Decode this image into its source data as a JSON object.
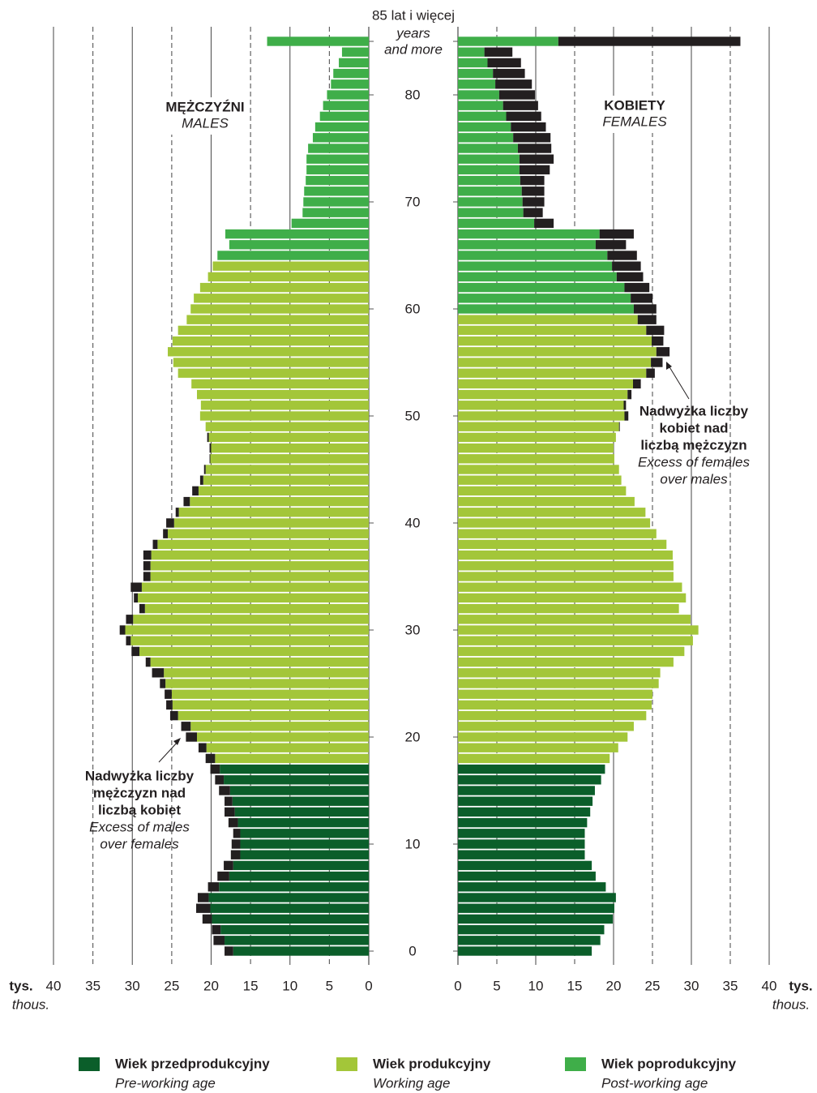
{
  "chart_data": {
    "type": "population_pyramid",
    "categories": [
      "0",
      null,
      null,
      null,
      null,
      null,
      null,
      null,
      null,
      null,
      "10",
      null,
      null,
      null,
      null,
      null,
      null,
      null,
      null,
      null,
      "20",
      null,
      null,
      null,
      null,
      null,
      null,
      null,
      null,
      null,
      "30",
      null,
      null,
      null,
      null,
      null,
      null,
      null,
      null,
      null,
      "40",
      null,
      null,
      null,
      null,
      null,
      null,
      null,
      null,
      null,
      "50",
      null,
      null,
      null,
      null,
      null,
      null,
      null,
      null,
      null,
      "60",
      null,
      null,
      null,
      null,
      null,
      null,
      null,
      null,
      null,
      "70",
      null,
      null,
      null,
      null,
      null,
      null,
      null,
      null,
      null,
      "80",
      null,
      null,
      null,
      null,
      "85 lat i więcej"
    ],
    "top_category_note": [
      "years",
      "and more"
    ],
    "males": [
      18.3,
      19.7,
      19.9,
      21.1,
      21.9,
      21.7,
      20.4,
      19.2,
      18.4,
      17.5,
      17.4,
      17.2,
      17.8,
      18.3,
      18.3,
      19.0,
      19.5,
      20.1,
      20.7,
      21.6,
      23.2,
      23.8,
      25.2,
      25.7,
      25.9,
      26.5,
      27.5,
      28.3,
      30.1,
      30.8,
      31.6,
      30.8,
      29.1,
      29.8,
      30.2,
      28.6,
      28.6,
      28.6,
      27.4,
      26.1,
      25.7,
      24.5,
      23.5,
      22.4,
      21.4,
      20.9,
      20.2,
      20.2,
      20.5,
      20.7,
      21.4,
      21.3,
      21.8,
      22.5,
      24.2,
      24.8,
      25.5,
      24.9,
      24.2,
      23.1,
      22.6,
      22.2,
      21.4,
      20.4,
      19.8,
      19.2,
      17.7,
      18.2,
      9.8,
      8.4,
      8.3,
      8.2,
      8.0,
      7.9,
      7.9,
      7.7,
      7.1,
      6.8,
      6.2,
      5.8,
      5.3,
      4.8,
      4.5,
      3.8,
      3.4,
      12.9
    ],
    "females": [
      17.2,
      18.3,
      18.8,
      19.9,
      20.1,
      20.3,
      19.0,
      17.7,
      17.2,
      16.3,
      16.3,
      16.3,
      16.6,
      17.0,
      17.3,
      17.6,
      18.4,
      18.9,
      19.5,
      20.6,
      21.8,
      22.6,
      24.2,
      24.9,
      25.0,
      25.8,
      26.0,
      27.7,
      29.1,
      30.2,
      30.9,
      29.9,
      28.4,
      29.3,
      28.8,
      27.7,
      27.7,
      27.6,
      26.8,
      25.5,
      24.7,
      24.1,
      22.7,
      21.6,
      21.0,
      20.7,
      20.1,
      20.0,
      20.3,
      20.8,
      21.9,
      21.6,
      22.3,
      23.5,
      25.3,
      26.3,
      27.2,
      26.4,
      26.5,
      25.5,
      25.5,
      25.0,
      24.6,
      23.8,
      23.5,
      23.0,
      21.6,
      22.6,
      12.3,
      10.9,
      11.1,
      11.1,
      11.1,
      11.8,
      12.3,
      12.0,
      11.9,
      11.3,
      10.7,
      10.3,
      9.9,
      9.5,
      8.6,
      8.1,
      7.0,
      36.3
    ],
    "groups": [
      {
        "name": "Wiek przedprodukcyjny",
        "name_en": "Pre-working age",
        "color": "#0b5e2a",
        "from": {
          "males": 0,
          "females": 0
        }
      },
      {
        "name": "Wiek produkcyjny",
        "name_en": "Working age",
        "color": "#a3c639",
        "from": {
          "males": 18,
          "females": 18
        }
      },
      {
        "name": "Wiek poprodukcyjny",
        "name_en": "Post-working age",
        "color": "#3fae49",
        "from": {
          "males": 65,
          "females": 60
        }
      }
    ],
    "excess_color": "#231f20",
    "xlim": [
      0,
      40
    ],
    "xticks": [
      0,
      5,
      10,
      15,
      20,
      25,
      30,
      35,
      40
    ],
    "grid": true,
    "x_unit": "tys.",
    "x_unit_en": "thous.",
    "male_label": "MĘŻCZYŹNI",
    "male_label_en": "MALES",
    "female_label": "KOBIETY",
    "female_label_en": "FEMALES",
    "annotation_males": {
      "bold": [
        "Nadwyżka liczby",
        "mężczyzn nad",
        "liczbą kobiet"
      ],
      "italic": [
        "Excess of males",
        "over females"
      ]
    },
    "annotation_females": {
      "bold": [
        "Nadwyżka liczby",
        "kobiet nad",
        "liczbą mężczyzn"
      ],
      "italic": [
        "Excess of females",
        "over males"
      ]
    }
  }
}
